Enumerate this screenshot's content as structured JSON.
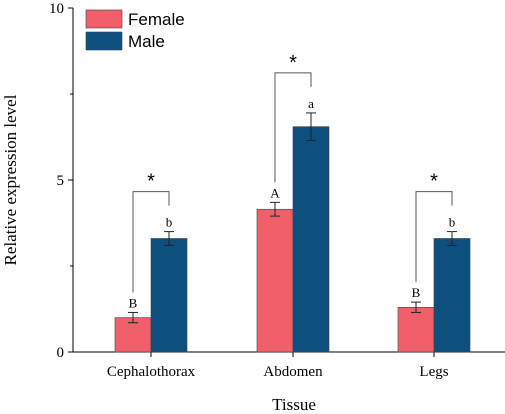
{
  "chart_data": {
    "type": "bar",
    "xlabel": "Tissue",
    "ylabel": "Relative expression level",
    "ylim": [
      0,
      10
    ],
    "yticks": [
      0,
      5,
      10
    ],
    "categories": [
      "Cephalothorax",
      "Abdomen",
      "Legs"
    ],
    "series": [
      {
        "name": "Female",
        "color": "#f0606b",
        "values": [
          1.0,
          4.15,
          1.3
        ],
        "errors": [
          0.15,
          0.2,
          0.15
        ],
        "labels": [
          "B",
          "A",
          "B"
        ]
      },
      {
        "name": "Male",
        "color": "#0d4f7f",
        "values": [
          3.3,
          6.55,
          3.3
        ],
        "errors": [
          0.2,
          0.4,
          0.2
        ],
        "labels": [
          "b",
          "a",
          "b"
        ]
      }
    ],
    "significance": [
      "*",
      "*",
      "*"
    ],
    "legend_position": "top-left",
    "grid": false
  }
}
